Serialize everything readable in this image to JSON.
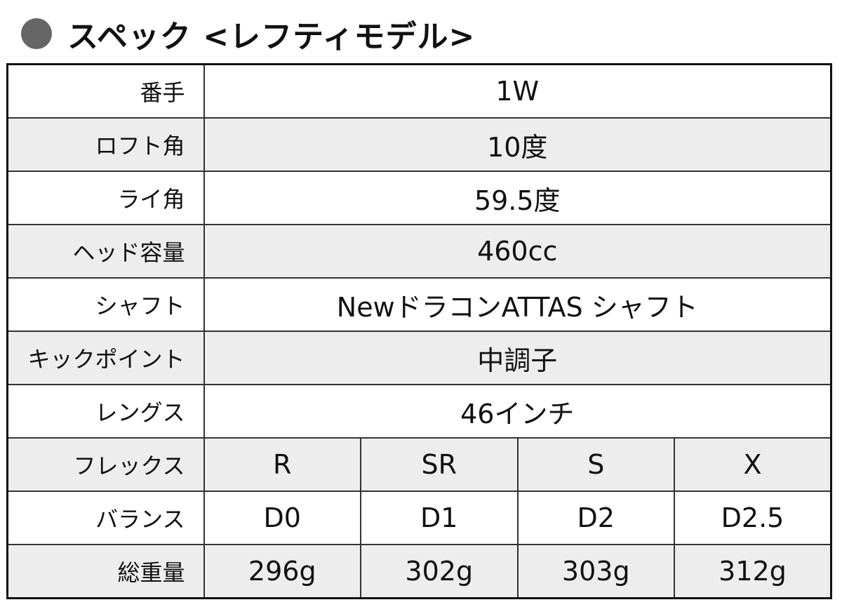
{
  "title": "スペック <レフティモデル>",
  "single_rows": [
    {
      "label": "番手",
      "value": "1W"
    },
    {
      "label": "ロフト角",
      "value": "10度"
    },
    {
      "label": "ライ角",
      "value": "59.5度"
    },
    {
      "label": "ヘッド容量",
      "value": "460cc"
    },
    {
      "label": "シャフト",
      "value": "NewドラコンATTAS シャフト"
    },
    {
      "label": "キックポイント",
      "value": "中調子"
    },
    {
      "label": "レングス",
      "value": "46インチ"
    }
  ],
  "multi_rows": [
    {
      "label": "フレックス",
      "values": [
        "R",
        "SR",
        "S",
        "X"
      ]
    },
    {
      "label": "バランス",
      "values": [
        "D0",
        "D1",
        "D2",
        "D2.5"
      ]
    },
    {
      "label": "総重量",
      "values": [
        "296g",
        "302g",
        "303g",
        "312g"
      ]
    }
  ]
}
